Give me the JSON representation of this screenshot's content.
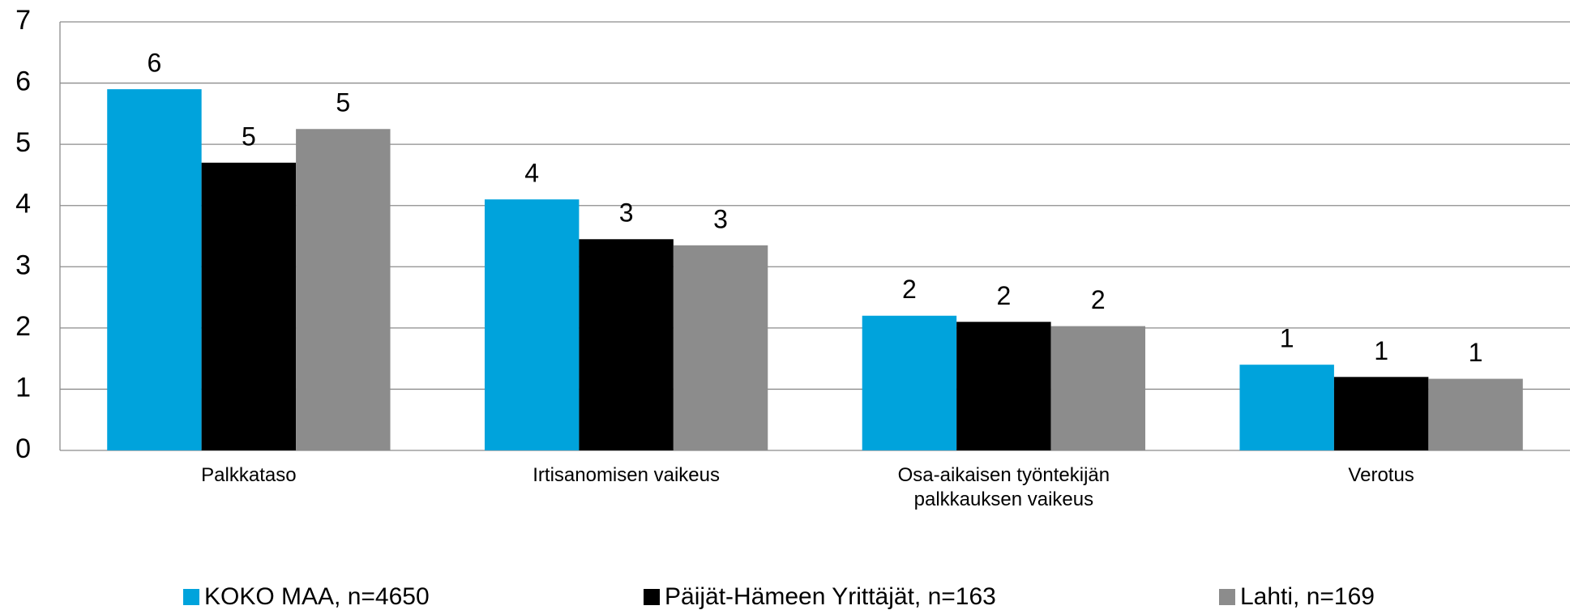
{
  "chart_data": {
    "type": "bar",
    "categories": [
      "Palkkataso",
      "Irtisanomisen vaikeus",
      "Osa-aikaisen työntekijän\npalkkauksen vaikeus",
      "Verotus"
    ],
    "series": [
      {
        "name": "KOKO MAA, n=4650",
        "color": "#00a3dc",
        "values": [
          5.9,
          4.1,
          2.2,
          1.4
        ],
        "value_labels": [
          "6",
          "4",
          "2",
          "1"
        ]
      },
      {
        "name": "Päijät-Hämeen Yrittäjät, n=163",
        "color": "#000000",
        "values": [
          4.7,
          3.45,
          2.1,
          1.2
        ],
        "value_labels": [
          "5",
          "3",
          "2",
          "1"
        ]
      },
      {
        "name": "Lahti, n=169",
        "color": "#8c8c8c",
        "values": [
          5.25,
          3.35,
          2.03,
          1.17
        ],
        "value_labels": [
          "5",
          "3",
          "2",
          "1"
        ]
      }
    ],
    "ylim": [
      0,
      7
    ],
    "yticks": [
      0,
      1,
      2,
      3,
      4,
      5,
      6,
      7
    ],
    "grid": true,
    "legend": "bottom"
  }
}
